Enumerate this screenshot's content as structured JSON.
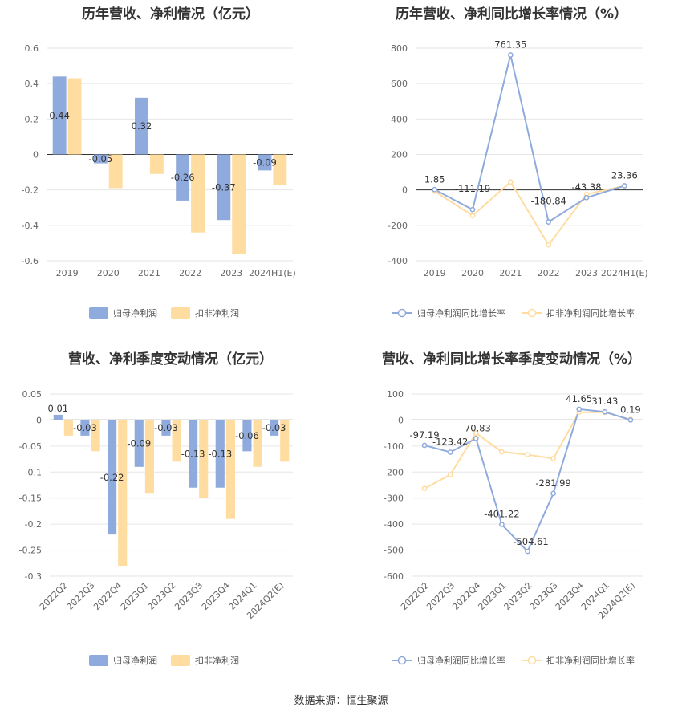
{
  "colors": {
    "series1": "#8faadc",
    "series2": "#ffdca0",
    "grid": "#e6e6e6",
    "axis": "#333333"
  },
  "source_text": "数据来源：恒生聚源",
  "chart_data": [
    {
      "type": "bar",
      "title": "历年营收、净利情况（亿元）",
      "categories": [
        "2019",
        "2020",
        "2021",
        "2022",
        "2023",
        "2024H1(E)"
      ],
      "yticks": [
        0.6,
        0.4,
        0.2,
        0,
        -0.2,
        -0.4,
        -0.6
      ],
      "ylim": [
        -0.6,
        0.6
      ],
      "series": [
        {
          "name": "归母净利润",
          "values": [
            0.44,
            -0.05,
            0.32,
            -0.26,
            -0.37,
            -0.09
          ],
          "labels": [
            "0.44",
            "-0.05",
            "0.32",
            "-0.26",
            "-0.37",
            "-0.09"
          ]
        },
        {
          "name": "扣非净利润",
          "values": [
            0.43,
            -0.19,
            -0.11,
            -0.44,
            -0.56,
            -0.17
          ]
        }
      ]
    },
    {
      "type": "line",
      "title": "历年营收、净利同比增长率情况（%）",
      "categories": [
        "2019",
        "2020",
        "2021",
        "2022",
        "2023",
        "2024H1(E)"
      ],
      "yticks": [
        800,
        600,
        400,
        200,
        0,
        -200,
        -400
      ],
      "ylim": [
        -400,
        800
      ],
      "series": [
        {
          "name": "归母净利润同比增长率",
          "values": [
            1.85,
            -111.19,
            761.35,
            -180.84,
            -43.38,
            23.36
          ],
          "labels": [
            "1.85",
            "-111.19",
            "761.35",
            "-180.84",
            "-43.38",
            "23.36"
          ]
        },
        {
          "name": "扣非净利润同比增长率",
          "values": [
            -8,
            -145,
            45,
            -310,
            -25,
            23
          ]
        }
      ]
    },
    {
      "type": "bar",
      "title": "营收、净利季度变动情况（亿元）",
      "categories": [
        "2022Q2",
        "2022Q3",
        "2022Q4",
        "2023Q1",
        "2023Q2",
        "2023Q3",
        "2023Q4",
        "2024Q1",
        "2024Q2(E)"
      ],
      "yticks": [
        0.05,
        0,
        -0.05,
        -0.1,
        -0.15,
        -0.2,
        -0.25,
        -0.3
      ],
      "ylim": [
        -0.3,
        0.05
      ],
      "series": [
        {
          "name": "归母净利润",
          "values": [
            0.01,
            -0.03,
            -0.22,
            -0.09,
            -0.03,
            -0.13,
            -0.13,
            -0.06,
            -0.03
          ],
          "labels": [
            "0.01",
            "-0.03",
            "-0.22",
            "-0.09",
            "-0.03",
            "-0.13",
            "-0.13",
            "-0.06",
            "-0.03"
          ]
        },
        {
          "name": "扣非净利润",
          "values": [
            -0.03,
            -0.06,
            -0.28,
            -0.14,
            -0.08,
            -0.15,
            -0.19,
            -0.09,
            -0.08
          ]
        }
      ]
    },
    {
      "type": "line",
      "title": "营收、净利同比增长率季度变动情况（%）",
      "categories": [
        "2022Q2",
        "2022Q3",
        "2022Q4",
        "2023Q1",
        "2023Q2",
        "2023Q3",
        "2023Q4",
        "2024Q1",
        "2024Q2(E)"
      ],
      "yticks": [
        100,
        0,
        -100,
        -200,
        -300,
        -400,
        -500,
        -600
      ],
      "ylim": [
        -600,
        100
      ],
      "series": [
        {
          "name": "归母净利润同比增长率",
          "values": [
            -97.19,
            -123.42,
            -70.83,
            -401.22,
            -504.61,
            -281.99,
            41.65,
            31.43,
            0.19
          ],
          "labels": [
            "-97.19",
            "-123.42",
            "-70.83",
            "-401.22",
            "-504.61",
            "-281.99",
            "41.65",
            "31.43",
            "0.19"
          ]
        },
        {
          "name": "扣非净利润同比增长率",
          "values": [
            -263,
            -210,
            -50,
            -122,
            -133,
            -148,
            30,
            30,
            2
          ]
        }
      ]
    }
  ]
}
